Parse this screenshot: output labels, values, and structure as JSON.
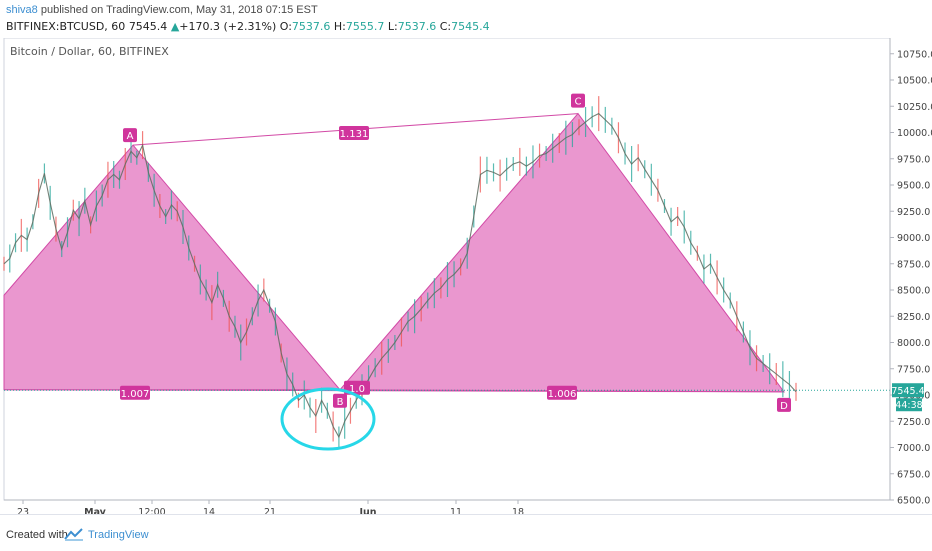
{
  "header": {
    "author": "shiva8",
    "published_text": "published on TradingView.com, May 31, 2018 07:15 EST",
    "symbol": "BITFINEX:BTCUSD, 60",
    "last": "7545.4",
    "change": "+170.3 (+2.31%)",
    "o_label": "O:",
    "o_value": "7537.6",
    "h_label": "H:",
    "h_value": "7555.7",
    "l_label": "L:",
    "l_value": "7537.6",
    "c_label": "C:",
    "c_value": "7545.4"
  },
  "footer": {
    "created_with": "Created with",
    "brand": "TradingView"
  },
  "chart_data": {
    "type": "line",
    "title": "Bitcoin / Dollar, 60, BITFINEX",
    "ylim": [
      6500,
      10900
    ],
    "y_ticks": [
      "10750.0",
      "10500.0",
      "10250.0",
      "10000.0",
      "9750.0",
      "9500.0",
      "9250.0",
      "9000.0",
      "8750.0",
      "8500.0",
      "8250.0",
      "8000.0",
      "7750.0",
      "7500.0",
      "7250.0",
      "7000.0",
      "6750.0",
      "6500.0"
    ],
    "x_ticks": [
      "23",
      "May",
      "12:00",
      "14",
      "21",
      "Jun",
      "11",
      "18"
    ],
    "last_price_label": "7545.4",
    "countdown_label": "44:38",
    "pattern": {
      "points": [
        {
          "name": "A",
          "price": 9880
        },
        {
          "name": "B",
          "price": 7550
        },
        {
          "name": "C",
          "price": 10180
        },
        {
          "name": "D",
          "price": 7530
        }
      ],
      "ratios": [
        "1.131",
        "1.007",
        "1.0",
        "1.006"
      ]
    },
    "series": [
      {
        "values": [
          8750,
          8800,
          8950,
          9020,
          8980,
          9150,
          9420,
          9610,
          9330,
          9080,
          8890,
          9050,
          9260,
          9180,
          9350,
          9120,
          9300,
          9400,
          9550,
          9600,
          9550,
          9700,
          9820,
          9760,
          9880,
          9620,
          9450,
          9300,
          9200,
          9310,
          9250,
          9100,
          8900,
          8750,
          8600,
          8500,
          8380,
          8550,
          8420,
          8250,
          8150,
          8000,
          8100,
          8250,
          8400,
          8500,
          8350,
          8200,
          7900,
          7700,
          7600,
          7450,
          7500,
          7380,
          7300,
          7450,
          7350,
          7200,
          7100,
          7250,
          7350,
          7450,
          7550
        ]
      },
      {
        "values": [
          7550,
          7650,
          7760,
          7850,
          7920,
          8000,
          8100,
          8200,
          8250,
          8320,
          8400,
          8470,
          8520,
          8600,
          8650,
          8720,
          8850,
          9200,
          9600,
          9640,
          9620,
          9590,
          9650,
          9700,
          9720,
          9680,
          9720,
          9780,
          9800,
          9850,
          9900,
          9950,
          9980,
          10050,
          10100,
          10150,
          10180,
          10120,
          10060,
          9950,
          9800,
          9700,
          9760,
          9650,
          9550,
          9450,
          9300,
          9150,
          9200,
          9100,
          8950,
          8850,
          8700,
          8750,
          8620,
          8500,
          8400,
          8250,
          8100,
          7950,
          7850,
          7800,
          7750,
          7700,
          7650,
          7600,
          7530
        ]
      }
    ]
  }
}
